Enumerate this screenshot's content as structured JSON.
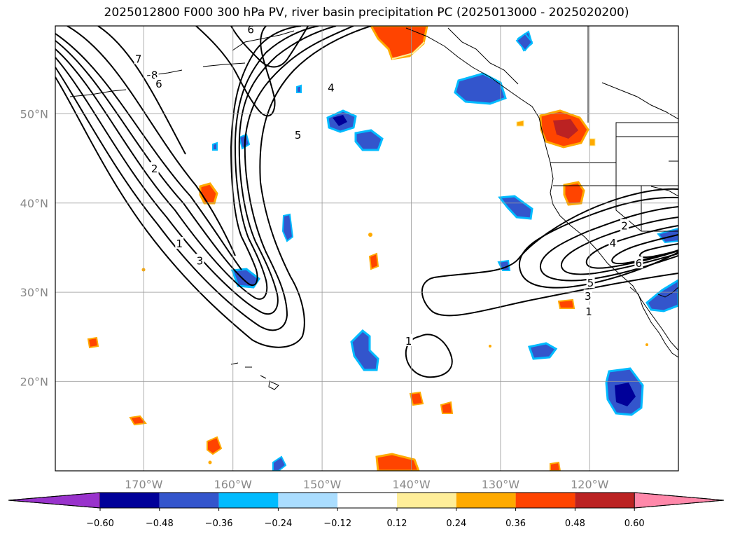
{
  "title": "2025012800 F000 300 hPa PV, river basin precipitation PC (2025013000 - 2025020200)",
  "lat_ticks": [
    {
      "lat": 50,
      "label": "50°N"
    },
    {
      "lat": 40,
      "label": "40°N"
    },
    {
      "lat": 30,
      "label": "30°N"
    },
    {
      "lat": 20,
      "label": "20°N"
    }
  ],
  "lon_ticks": [
    {
      "lon": -170,
      "label": "170°W"
    },
    {
      "lon": -160,
      "label": "160°W"
    },
    {
      "lon": -150,
      "label": "150°W"
    },
    {
      "lon": -140,
      "label": "140°W"
    },
    {
      "lon": -130,
      "label": "130°W"
    },
    {
      "lon": -120,
      "label": "120°W"
    }
  ],
  "colorbar": {
    "colors": [
      "#9933cc",
      "#000099",
      "#3355cc",
      "#00bbff",
      "#aaddff",
      "#ffffff",
      "#ffee99",
      "#ffaa00",
      "#ff4400",
      "#bb2222",
      "#ff88aa"
    ],
    "labels": [
      "−0.60",
      "−0.48",
      "−0.36",
      "−0.24",
      "−0.12",
      "0.12",
      "0.24",
      "0.36",
      "0.48",
      "0.60"
    ]
  },
  "contour_labels": [
    {
      "text": "7",
      "lon": -170.6,
      "lat": 56.2
    },
    {
      "text": "8",
      "lon": -168.8,
      "lat": 54.4
    },
    {
      "text": "6",
      "lon": -168.3,
      "lat": 53.4
    },
    {
      "text": "6",
      "lon": -158.0,
      "lat": 59.5
    },
    {
      "text": "4",
      "lon": -149.0,
      "lat": 53.0
    },
    {
      "text": "5",
      "lon": -152.7,
      "lat": 47.7
    },
    {
      "text": "2",
      "lon": -168.8,
      "lat": 43.9
    },
    {
      "text": "1",
      "lon": -166.0,
      "lat": 35.5
    },
    {
      "text": "3",
      "lon": -163.7,
      "lat": 33.6
    },
    {
      "text": "1",
      "lon": -140.3,
      "lat": 24.6
    },
    {
      "text": "2",
      "lon": -116.1,
      "lat": 37.5
    },
    {
      "text": "4",
      "lon": -117.4,
      "lat": 35.6
    },
    {
      "text": "6",
      "lon": -114.5,
      "lat": 33.3
    },
    {
      "text": "5",
      "lon": -119.9,
      "lat": 31.1
    },
    {
      "text": "3",
      "lon": -120.2,
      "lat": 29.6
    },
    {
      "text": "1",
      "lon": -120.1,
      "lat": 27.9
    }
  ]
}
